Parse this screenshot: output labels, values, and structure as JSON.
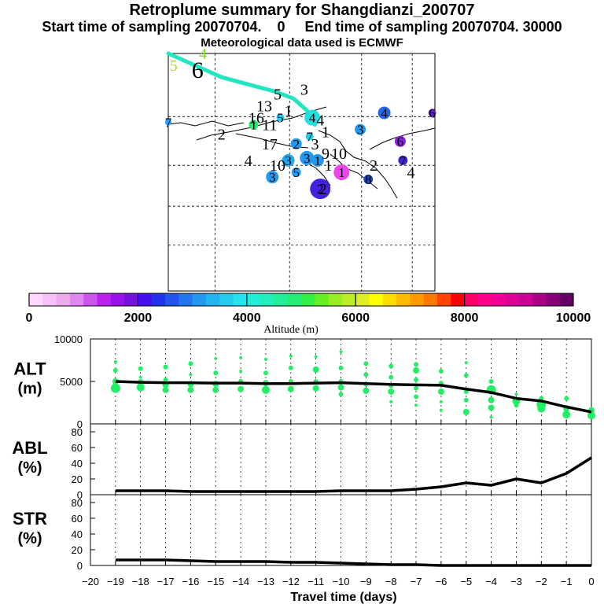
{
  "titles": {
    "main": "Retroplume summary for Shangdianzi_200707",
    "sampling": "Start time of sampling 20070704.    0     End time of sampling 20070704. 30000",
    "meteo": "Meteorological data used is ECMWF"
  },
  "colors": {
    "plume_track": "#22e6c0",
    "alt_points": "#22ee66",
    "lines": "#000000",
    "grid": "#000000"
  },
  "map": {
    "labels": [
      {
        "text": "5",
        "lon": 0.02,
        "lat": 0.05,
        "color": "#a8e020"
      },
      {
        "text": "4",
        "lon": 0.13,
        "lat": 0.0,
        "color": "#88dd22"
      },
      {
        "text": "6",
        "lon": 0.11,
        "lat": 0.08
      },
      {
        "text": "5",
        "lon": 0.41,
        "lat": 0.17
      },
      {
        "text": "3",
        "lon": 0.51,
        "lat": 0.15
      },
      {
        "text": "13",
        "lon": 0.36,
        "lat": 0.22
      },
      {
        "text": "1",
        "lon": 0.45,
        "lat": 0.24
      },
      {
        "text": "16",
        "lon": 0.33,
        "lat": 0.27
      },
      {
        "text": "11",
        "lon": 0.38,
        "lat": 0.3
      },
      {
        "text": "4",
        "lon": 0.57,
        "lat": 0.28
      },
      {
        "text": "2",
        "lon": 0.2,
        "lat": 0.34
      },
      {
        "text": "1",
        "lon": 0.59,
        "lat": 0.33
      },
      {
        "text": "17",
        "lon": 0.38,
        "lat": 0.38
      },
      {
        "text": "3",
        "lon": 0.55,
        "lat": 0.38
      },
      {
        "text": "4",
        "lon": 0.3,
        "lat": 0.45
      },
      {
        "text": "10",
        "lon": 0.41,
        "lat": 0.47
      },
      {
        "text": "9",
        "lon": 0.59,
        "lat": 0.42
      },
      {
        "text": "10",
        "lon": 0.64,
        "lat": 0.42
      },
      {
        "text": "1",
        "lon": 0.6,
        "lat": 0.47
      },
      {
        "text": "2",
        "lon": 0.77,
        "lat": 0.47
      },
      {
        "text": "4",
        "lon": 0.91,
        "lat": 0.5
      },
      {
        "text": "2",
        "lon": 0.58,
        "lat": 0.57
      }
    ],
    "sample_circles": [
      {
        "text": "7",
        "lon": 0.0,
        "lat": 0.29,
        "color": "#22a0ff",
        "r": 4
      },
      {
        "text": "1",
        "lon": 0.32,
        "lat": 0.3,
        "color": "#22ee66",
        "r": 6
      },
      {
        "text": "5",
        "lon": 0.42,
        "lat": 0.27,
        "color": "#22c8f0",
        "r": 5
      },
      {
        "text": "4",
        "lon": 0.54,
        "lat": 0.27,
        "color": "#22e0e0",
        "r": 10
      },
      {
        "text": "4",
        "lon": 0.81,
        "lat": 0.25,
        "color": "#2266ee",
        "r": 8
      },
      {
        "text": "6",
        "lon": 0.99,
        "lat": 0.25,
        "color": "#6622cc",
        "r": 5
      },
      {
        "text": "2",
        "lon": 0.48,
        "lat": 0.38,
        "color": "#2299ee",
        "r": 7
      },
      {
        "text": "7",
        "lon": 0.53,
        "lat": 0.35,
        "color": "#22d0f0",
        "r": 5
      },
      {
        "text": "3",
        "lon": 0.72,
        "lat": 0.32,
        "color": "#2299ee",
        "r": 7
      },
      {
        "text": "6",
        "lon": 0.87,
        "lat": 0.37,
        "color": "#8822dd",
        "r": 7
      },
      {
        "text": "3",
        "lon": 0.45,
        "lat": 0.45,
        "color": "#22a8ee",
        "r": 8
      },
      {
        "text": "3",
        "lon": 0.52,
        "lat": 0.44,
        "color": "#2299ee",
        "r": 9
      },
      {
        "text": "1",
        "lon": 0.56,
        "lat": 0.45,
        "color": "#2299ee",
        "r": 8
      },
      {
        "text": "7",
        "lon": 0.88,
        "lat": 0.45,
        "color": "#4422cc",
        "r": 6
      },
      {
        "text": "5",
        "lon": 0.48,
        "lat": 0.5,
        "color": "#22a0ff",
        "r": 6
      },
      {
        "text": "1",
        "lon": 0.65,
        "lat": 0.5,
        "color": "#ee44ee",
        "r": 10
      },
      {
        "text": "3",
        "lon": 0.39,
        "lat": 0.52,
        "color": "#2299ee",
        "r": 8
      },
      {
        "text": "8",
        "lon": 0.75,
        "lat": 0.53,
        "color": "#2244cc",
        "r": 6
      },
      {
        "text": "2",
        "lon": 0.57,
        "lat": 0.57,
        "color": "#4422dd",
        "r": 13
      }
    ],
    "track_lon": [
      0.0,
      0.2,
      0.4,
      0.47,
      0.52,
      0.55
    ],
    "track_lat": [
      0.0,
      0.1,
      0.16,
      0.19,
      0.24,
      0.3
    ]
  },
  "colorbar": {
    "title": "Altitude (m)",
    "range": [
      0,
      10000
    ],
    "tick_labels": [
      "0",
      "2000",
      "4000",
      "6000",
      "8000",
      "10000"
    ],
    "colors": [
      "#ffd6ff",
      "#f8c0f8",
      "#eeaaee",
      "#e088f0",
      "#cc55f0",
      "#bb22ee",
      "#9911ee",
      "#7711dd",
      "#4411ee",
      "#2233ee",
      "#2255f0",
      "#2277f0",
      "#2299f0",
      "#22b4f0",
      "#22ccf0",
      "#22e4f0",
      "#22eed8",
      "#22eebb",
      "#22ee99",
      "#22ee77",
      "#33ee44",
      "#66ee22",
      "#99ee22",
      "#bbee22",
      "#ddee22",
      "#ffff00",
      "#ffdd00",
      "#ffbb00",
      "#ff9900",
      "#ff7700",
      "#ff4400",
      "#ff0000",
      "#ff0066",
      "#ff0088",
      "#ee0099",
      "#dd0099",
      "#cc0099",
      "#aa0088",
      "#880077",
      "#660066"
    ]
  },
  "chart_data": [
    {
      "type": "scatter",
      "panel": "ALT",
      "ylabel": "ALT",
      "yunit": "(m)",
      "x": [
        -19,
        -18,
        -17,
        -16,
        -15,
        -14,
        -13,
        -12,
        -11,
        -10,
        -9,
        -8,
        -7,
        -6,
        -5,
        -4,
        -3,
        -2,
        -1,
        0
      ],
      "series": [
        {
          "name": "mean altitude",
          "values": [
            5000,
            4900,
            4850,
            4850,
            4800,
            4800,
            4750,
            4750,
            4800,
            4850,
            4750,
            4650,
            4600,
            4550,
            4100,
            3700,
            3000,
            2700,
            2000,
            1400
          ]
        }
      ],
      "points": [
        {
          "x": -19,
          "y": 7300,
          "s": 2
        },
        {
          "x": -19,
          "y": 6300,
          "s": 3
        },
        {
          "x": -19,
          "y": 5000,
          "s": 4
        },
        {
          "x": -19,
          "y": 4200,
          "s": 6
        },
        {
          "x": -18,
          "y": 6500,
          "s": 3
        },
        {
          "x": -18,
          "y": 5500,
          "s": 2
        },
        {
          "x": -18,
          "y": 4900,
          "s": 4
        },
        {
          "x": -18,
          "y": 4300,
          "s": 5
        },
        {
          "x": -17,
          "y": 6700,
          "s": 3
        },
        {
          "x": -17,
          "y": 5200,
          "s": 3
        },
        {
          "x": -17,
          "y": 4600,
          "s": 4
        },
        {
          "x": -17,
          "y": 4000,
          "s": 4
        },
        {
          "x": -16,
          "y": 7100,
          "s": 3
        },
        {
          "x": -16,
          "y": 5800,
          "s": 2
        },
        {
          "x": -16,
          "y": 4700,
          "s": 4
        },
        {
          "x": -16,
          "y": 4000,
          "s": 4
        },
        {
          "x": -15,
          "y": 7700,
          "s": 2
        },
        {
          "x": -15,
          "y": 6000,
          "s": 3
        },
        {
          "x": -15,
          "y": 4700,
          "s": 4
        },
        {
          "x": -15,
          "y": 4000,
          "s": 4
        },
        {
          "x": -14,
          "y": 7800,
          "s": 2
        },
        {
          "x": -14,
          "y": 6200,
          "s": 2
        },
        {
          "x": -14,
          "y": 5000,
          "s": 3
        },
        {
          "x": -14,
          "y": 4100,
          "s": 4
        },
        {
          "x": -13,
          "y": 7600,
          "s": 2
        },
        {
          "x": -13,
          "y": 6000,
          "s": 3
        },
        {
          "x": -13,
          "y": 4800,
          "s": 4
        },
        {
          "x": -13,
          "y": 4000,
          "s": 5
        },
        {
          "x": -12,
          "y": 8000,
          "s": 2
        },
        {
          "x": -12,
          "y": 6600,
          "s": 3
        },
        {
          "x": -12,
          "y": 5000,
          "s": 3
        },
        {
          "x": -12,
          "y": 4100,
          "s": 4
        },
        {
          "x": -11,
          "y": 7900,
          "s": 2
        },
        {
          "x": -11,
          "y": 6400,
          "s": 4
        },
        {
          "x": -11,
          "y": 5000,
          "s": 3
        },
        {
          "x": -11,
          "y": 4200,
          "s": 4
        },
        {
          "x": -10,
          "y": 8500,
          "s": 2
        },
        {
          "x": -10,
          "y": 6600,
          "s": 3
        },
        {
          "x": -10,
          "y": 5000,
          "s": 3
        },
        {
          "x": -10,
          "y": 4300,
          "s": 4
        },
        {
          "x": -10,
          "y": 3500,
          "s": 3
        },
        {
          "x": -9,
          "y": 7100,
          "s": 3
        },
        {
          "x": -9,
          "y": 5800,
          "s": 3
        },
        {
          "x": -9,
          "y": 4700,
          "s": 3
        },
        {
          "x": -9,
          "y": 3900,
          "s": 4
        },
        {
          "x": -8,
          "y": 6800,
          "s": 3
        },
        {
          "x": -8,
          "y": 5500,
          "s": 3
        },
        {
          "x": -8,
          "y": 4500,
          "s": 3
        },
        {
          "x": -8,
          "y": 3800,
          "s": 4
        },
        {
          "x": -8,
          "y": 2600,
          "s": 2
        },
        {
          "x": -7,
          "y": 7000,
          "s": 3
        },
        {
          "x": -7,
          "y": 6300,
          "s": 4
        },
        {
          "x": -7,
          "y": 5200,
          "s": 3
        },
        {
          "x": -7,
          "y": 4200,
          "s": 3
        },
        {
          "x": -7,
          "y": 3200,
          "s": 3
        },
        {
          "x": -7,
          "y": 2200,
          "s": 2
        },
        {
          "x": -6,
          "y": 6200,
          "s": 3
        },
        {
          "x": -6,
          "y": 4800,
          "s": 3
        },
        {
          "x": -6,
          "y": 3800,
          "s": 4
        },
        {
          "x": -6,
          "y": 2600,
          "s": 2
        },
        {
          "x": -6,
          "y": 1600,
          "s": 2
        },
        {
          "x": -5,
          "y": 7200,
          "s": 2
        },
        {
          "x": -5,
          "y": 5700,
          "s": 3
        },
        {
          "x": -5,
          "y": 3800,
          "s": 3
        },
        {
          "x": -5,
          "y": 2800,
          "s": 3
        },
        {
          "x": -5,
          "y": 1400,
          "s": 4
        },
        {
          "x": -4,
          "y": 5000,
          "s": 3
        },
        {
          "x": -4,
          "y": 4000,
          "s": 6
        },
        {
          "x": -4,
          "y": 2800,
          "s": 4
        },
        {
          "x": -4,
          "y": 1900,
          "s": 4
        },
        {
          "x": -4,
          "y": 800,
          "s": 2
        },
        {
          "x": -3,
          "y": 3500,
          "s": 2
        },
        {
          "x": -3,
          "y": 2700,
          "s": 5
        },
        {
          "x": -3,
          "y": 2200,
          "s": 3
        },
        {
          "x": -2,
          "y": 3000,
          "s": 3
        },
        {
          "x": -2,
          "y": 2300,
          "s": 6
        },
        {
          "x": -2,
          "y": 1800,
          "s": 5
        },
        {
          "x": -1,
          "y": 3000,
          "s": 3
        },
        {
          "x": -1,
          "y": 1800,
          "s": 4
        },
        {
          "x": -1,
          "y": 1100,
          "s": 5
        },
        {
          "x": 0,
          "y": 1600,
          "s": 4
        },
        {
          "x": 0,
          "y": 1000,
          "s": 5
        }
      ],
      "ylim": [
        0,
        10000
      ],
      "yticks": [
        0,
        5000,
        10000
      ]
    },
    {
      "type": "line",
      "panel": "ABL",
      "ylabel": "ABL",
      "yunit": "(%)",
      "x": [
        -19,
        -18,
        -17,
        -16,
        -15,
        -14,
        -13,
        -12,
        -11,
        -10,
        -9,
        -8,
        -7,
        -6,
        -5,
        -4,
        -3,
        -2,
        -1,
        0
      ],
      "series": [
        {
          "name": "ABL fraction",
          "values": [
            5,
            5,
            5,
            4,
            4,
            4,
            4,
            4,
            4,
            5,
            5,
            5,
            7,
            10,
            15,
            12,
            20,
            15,
            27,
            47
          ]
        }
      ],
      "ylim": [
        0,
        90
      ],
      "yticks": [
        0,
        20,
        40,
        60,
        80
      ]
    },
    {
      "type": "line",
      "panel": "STR",
      "ylabel": "STR",
      "yunit": "(%)",
      "x": [
        -19,
        -18,
        -17,
        -16,
        -15,
        -14,
        -13,
        -12,
        -11,
        -10,
        -9,
        -8,
        -7,
        -6,
        -5,
        -4,
        -3,
        -2,
        -1,
        0
      ],
      "series": [
        {
          "name": "stratosphere fraction",
          "values": [
            7,
            7,
            7,
            6,
            5,
            5,
            5,
            4,
            4,
            3,
            2,
            1,
            1,
            0,
            0,
            0,
            0,
            0,
            0,
            0
          ]
        }
      ],
      "ylim": [
        0,
        90
      ],
      "yticks": [
        0,
        20,
        40,
        60,
        80
      ]
    }
  ],
  "xaxis": {
    "label": "Travel time (days)",
    "xlim": [
      -20,
      0
    ],
    "tick_labels": [
      "−20",
      "−19",
      "−18",
      "−17",
      "−16",
      "−15",
      "−14",
      "−13",
      "−12",
      "−11",
      "−10",
      "−9",
      "−8",
      "−7",
      "−6",
      "−5",
      "−4",
      "−3",
      "−2",
      "−1",
      "0"
    ]
  }
}
